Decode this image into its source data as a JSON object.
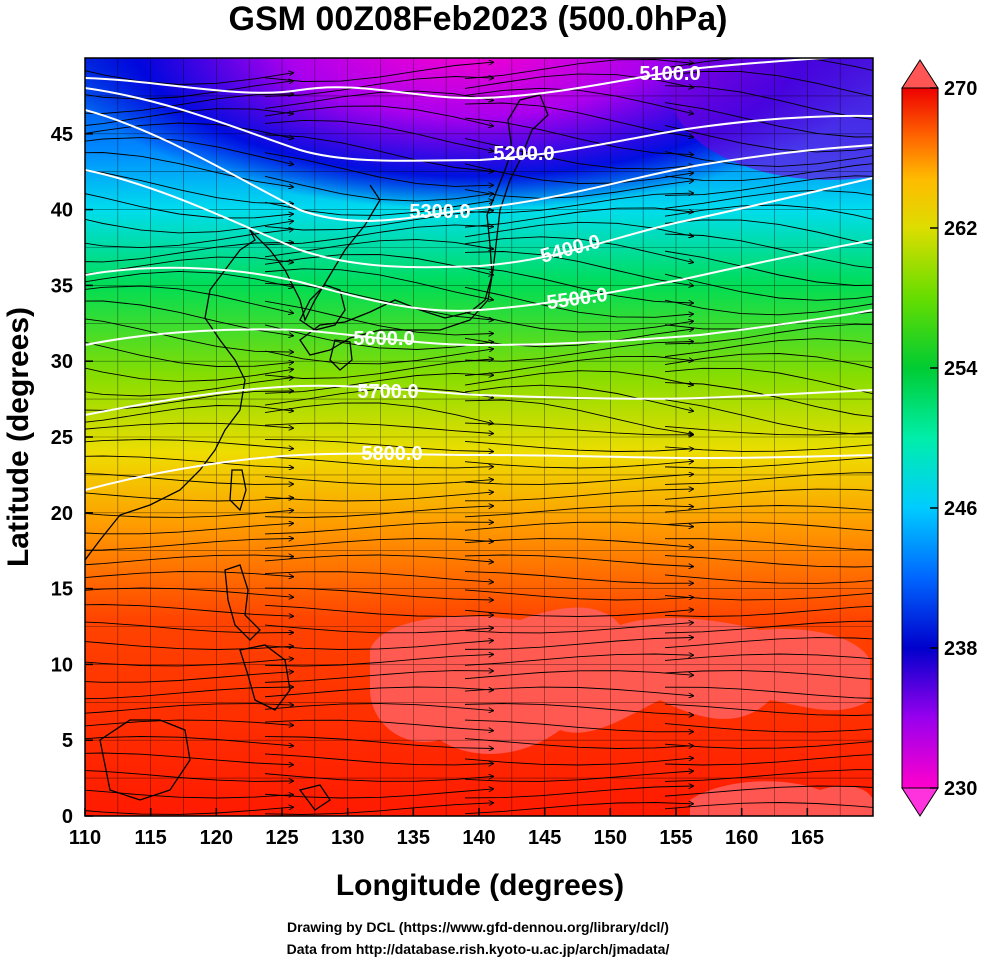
{
  "title": "GSM 00Z08Feb2023 (500.0hPa)",
  "x_axis": {
    "label": "Longitude (degrees)",
    "ticks": [
      110,
      115,
      120,
      125,
      130,
      135,
      140,
      145,
      150,
      155,
      160,
      165
    ],
    "range": [
      110,
      170
    ]
  },
  "y_axis": {
    "label": "Latitude  (degrees)",
    "ticks": [
      0,
      5,
      10,
      15,
      20,
      25,
      30,
      35,
      40,
      45
    ],
    "range": [
      0,
      50
    ]
  },
  "colorbar": {
    "min": 230,
    "max": 270,
    "ticks": [
      230,
      238,
      246,
      254,
      262,
      270
    ],
    "colors": [
      "#ff00cc",
      "#9900ee",
      "#0000cc",
      "#0066ff",
      "#00ccff",
      "#00eeaa",
      "#00cc33",
      "#66dd00",
      "#dddd00",
      "#ffbb00",
      "#ff7700",
      "#ff3300",
      "#ee0000"
    ]
  },
  "contours": [
    {
      "label": "5100.0"
    },
    {
      "label": "5200.0"
    },
    {
      "label": "5300.0"
    },
    {
      "label": "5400.0"
    },
    {
      "label": "5500.0"
    },
    {
      "label": "5600.0"
    },
    {
      "label": "5700.0"
    },
    {
      "label": "5800.0"
    }
  ],
  "credits": {
    "drawing": "Drawing by DCL (https://www.gfd-dennou.org/library/dcl/)",
    "data": "Data from http://database.rish.kyoto-u.ac.jp/arch/jmadata/"
  }
}
